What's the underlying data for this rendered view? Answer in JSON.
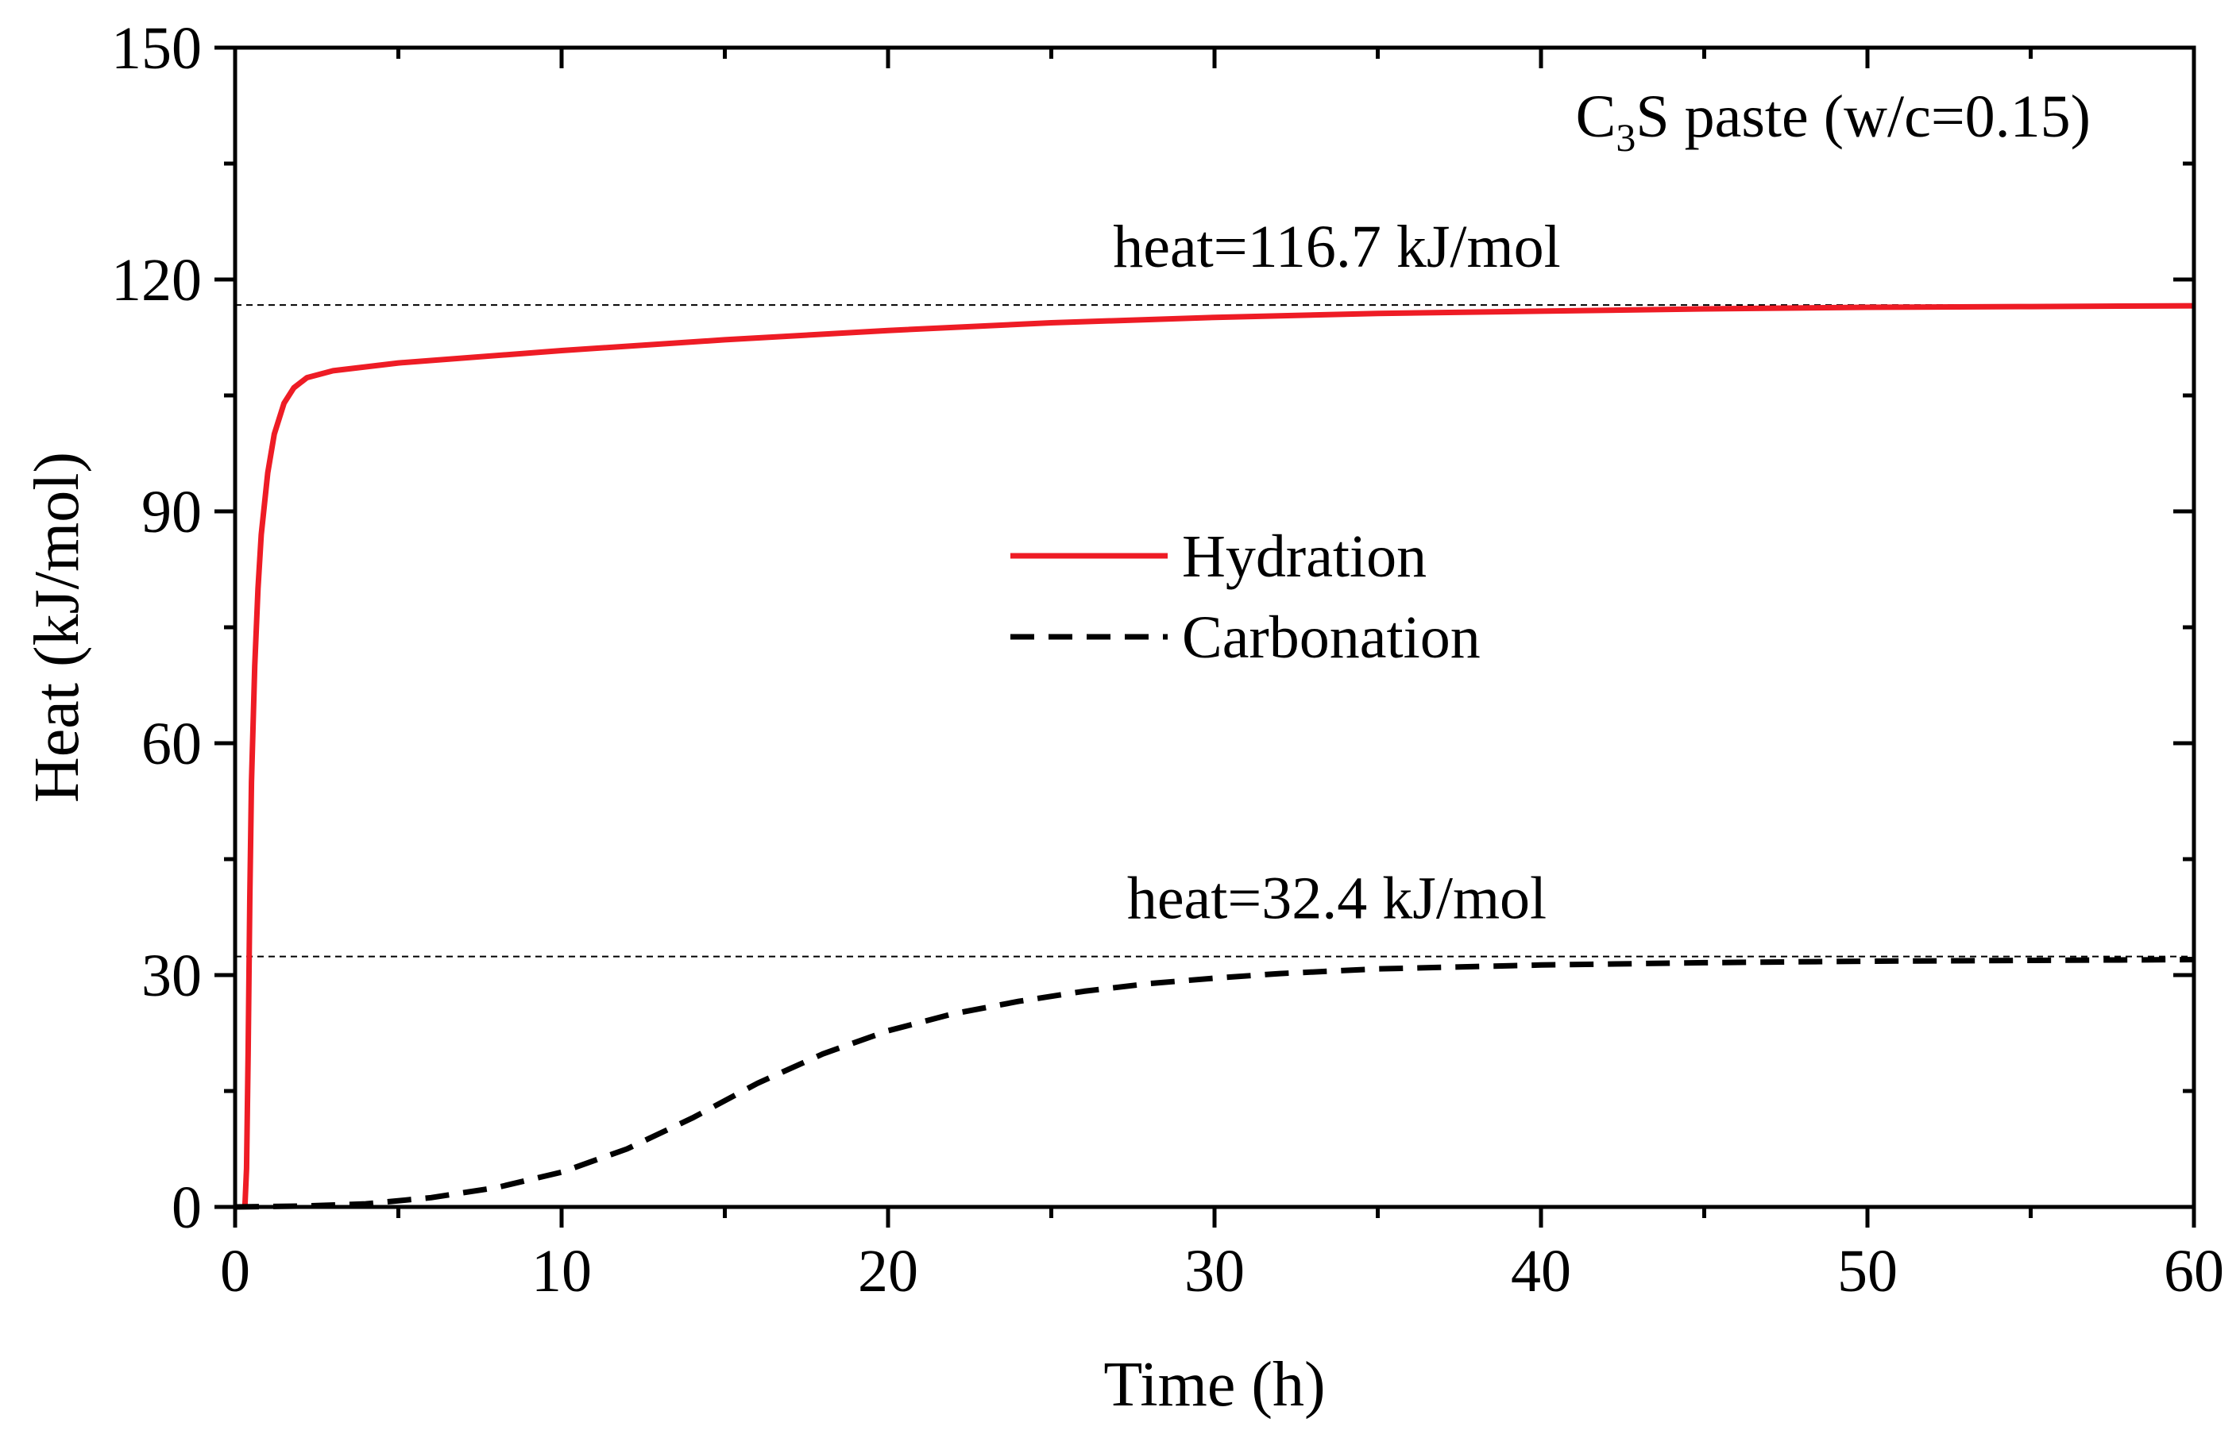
{
  "chart_data": {
    "type": "line",
    "title": "",
    "xlabel": "Time (h)",
    "ylabel": "Heat (kJ/mol)",
    "xlim": [
      0,
      60
    ],
    "ylim": [
      0,
      150
    ],
    "x_ticks": [
      0,
      10,
      20,
      30,
      40,
      50,
      60
    ],
    "y_ticks": [
      0,
      30,
      60,
      90,
      120,
      150
    ],
    "x_minor_step": 5,
    "y_minor_step": 15,
    "grid": false,
    "legend_position": "center",
    "series": [
      {
        "name": "Hydration",
        "color": "#ee1c25",
        "style": "solid",
        "points": [
          [
            0.3,
            0
          ],
          [
            0.35,
            5
          ],
          [
            0.4,
            20
          ],
          [
            0.45,
            40
          ],
          [
            0.5,
            55
          ],
          [
            0.6,
            70
          ],
          [
            0.7,
            80
          ],
          [
            0.8,
            87
          ],
          [
            1.0,
            95
          ],
          [
            1.2,
            100
          ],
          [
            1.5,
            104
          ],
          [
            1.8,
            106
          ],
          [
            2.2,
            107.3
          ],
          [
            3,
            108.2
          ],
          [
            5,
            109.2
          ],
          [
            10,
            110.8
          ],
          [
            15,
            112.2
          ],
          [
            20,
            113.4
          ],
          [
            25,
            114.4
          ],
          [
            30,
            115.1
          ],
          [
            35,
            115.6
          ],
          [
            40,
            115.9
          ],
          [
            45,
            116.2
          ],
          [
            50,
            116.4
          ],
          [
            55,
            116.5
          ],
          [
            60,
            116.6
          ]
        ]
      },
      {
        "name": "Carbonation",
        "color": "#000000",
        "style": "dashed",
        "points": [
          [
            0,
            0
          ],
          [
            2,
            0.1
          ],
          [
            4,
            0.4
          ],
          [
            6,
            1.2
          ],
          [
            8,
            2.5
          ],
          [
            10,
            4.5
          ],
          [
            12,
            7.5
          ],
          [
            14,
            11.5
          ],
          [
            16,
            16
          ],
          [
            18,
            19.8
          ],
          [
            20,
            22.8
          ],
          [
            22,
            25
          ],
          [
            24,
            26.6
          ],
          [
            26,
            27.9
          ],
          [
            28,
            28.9
          ],
          [
            30,
            29.6
          ],
          [
            32,
            30.2
          ],
          [
            35,
            30.8
          ],
          [
            40,
            31.3
          ],
          [
            45,
            31.6
          ],
          [
            50,
            31.8
          ],
          [
            55,
            31.9
          ],
          [
            60,
            32
          ]
        ]
      }
    ],
    "reference_lines": [
      {
        "y": 116.7,
        "label": "heat=116.7 kJ/mol"
      },
      {
        "y": 32.4,
        "label": "heat=32.4 kJ/mol"
      }
    ],
    "annotation": {
      "main": "C",
      "subscript": "3",
      "rest": "S paste (w/c=0.15)"
    }
  }
}
